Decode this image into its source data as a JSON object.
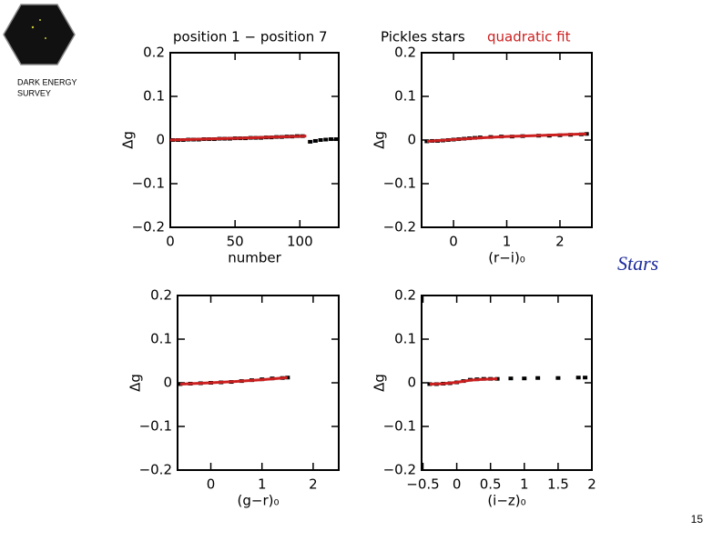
{
  "slide": {
    "logo_line1": "DARK ENERGY",
    "logo_line2": "SURVEY",
    "caption": "Stars",
    "page_number": "15"
  },
  "chart_data": [
    {
      "type": "scatter",
      "title": "position 1 − position 7",
      "xlabel": "number",
      "ylabel": "Δg",
      "xlim": [
        0,
        130
      ],
      "ylim": [
        -0.2,
        0.2
      ],
      "xticks": [
        0,
        50,
        100
      ],
      "yticks": [
        {
          "value": -0.2,
          "label": "−0.2"
        },
        {
          "value": -0.1,
          "label": "−0.1"
        },
        0,
        0.1,
        0.2
      ],
      "series": [
        {
          "color": "#000000",
          "x": [
            2,
            6,
            10,
            14,
            18,
            22,
            26,
            30,
            34,
            38,
            42,
            46,
            50,
            54,
            58,
            62,
            66,
            70,
            74,
            78,
            82,
            86,
            90,
            94,
            98,
            102,
            108,
            112,
            116,
            120,
            124,
            128
          ],
          "values": [
            0,
            0,
            0,
            0.001,
            0.001,
            0.001,
            0.002,
            0.002,
            0.002,
            0.003,
            0.003,
            0.003,
            0.004,
            0.004,
            0.004,
            0.005,
            0.005,
            0.005,
            0.006,
            0.006,
            0.007,
            0.007,
            0.008,
            0.008,
            0.009,
            0.009,
            -0.004,
            -0.002,
            0,
            0.001,
            0.002,
            0.002
          ]
        },
        {
          "color": "#cc1f1f",
          "x": [
            0,
            50,
            105
          ],
          "values": [
            0,
            0.004,
            0.009
          ]
        }
      ]
    },
    {
      "type": "scatter",
      "xlabel": "(r−i)₀",
      "ylabel": "Δg",
      "xlim": [
        -0.6,
        2.6
      ],
      "ylim": [
        -0.2,
        0.2
      ],
      "xticks": [
        0,
        1,
        2
      ],
      "yticks": [
        {
          "value": -0.2,
          "label": "−0.2"
        },
        {
          "value": -0.1,
          "label": "−0.1"
        },
        0,
        0.1,
        0.2
      ],
      "series": [
        {
          "name": "Pickles stars",
          "color": "#000000",
          "x": [
            -0.5,
            -0.4,
            -0.3,
            -0.2,
            -0.1,
            0,
            0.1,
            0.2,
            0.3,
            0.4,
            0.5,
            0.7,
            0.9,
            1.1,
            1.3,
            1.6,
            1.8,
            2.0,
            2.2,
            2.4,
            2.5
          ],
          "values": [
            -0.003,
            -0.002,
            -0.002,
            -0.001,
            0,
            0.001,
            0.002,
            0.003,
            0.004,
            0.005,
            0.006,
            0.007,
            0.008,
            0.008,
            0.009,
            0.01,
            0.01,
            0.011,
            0.012,
            0.013,
            0.014
          ]
        },
        {
          "name": "quadratic fit",
          "color": "#cc1f1f",
          "x": [
            -0.5,
            0,
            0.5,
            1,
            1.5,
            2,
            2.5
          ],
          "values": [
            -0.003,
            0.001,
            0.005,
            0.008,
            0.01,
            0.012,
            0.014
          ]
        }
      ]
    },
    {
      "type": "scatter",
      "xlabel": "(g−r)₀",
      "ylabel": "Δg",
      "xlim": [
        -0.65,
        2.5
      ],
      "ylim": [
        -0.2,
        0.2
      ],
      "xticks": [
        0,
        1,
        2
      ],
      "yticks": [
        {
          "value": -0.2,
          "label": "−0.2"
        },
        {
          "value": -0.1,
          "label": "−0.1"
        },
        0,
        0.1,
        0.2
      ],
      "series": [
        {
          "color": "#000000",
          "x": [
            -0.6,
            -0.4,
            -0.2,
            0,
            0.2,
            0.4,
            0.6,
            0.8,
            1.0,
            1.2,
            1.4,
            1.5
          ],
          "values": [
            -0.003,
            -0.002,
            -0.001,
            0,
            0.001,
            0.002,
            0.004,
            0.006,
            0.008,
            0.01,
            0.011,
            0.012
          ]
        },
        {
          "color": "#cc1f1f",
          "x": [
            -0.6,
            0,
            0.5,
            1,
            1.5
          ],
          "values": [
            -0.003,
            0,
            0.003,
            0.007,
            0.012
          ]
        }
      ]
    },
    {
      "type": "scatter",
      "xlabel": "(i−z)₀",
      "ylabel": "Δg",
      "xlim": [
        -0.52,
        2.0
      ],
      "ylim": [
        -0.2,
        0.2
      ],
      "xticks": [
        {
          "value": -0.5,
          "label": "−0.5"
        },
        0,
        0.5,
        1,
        1.5,
        2
      ],
      "yticks": [
        {
          "value": -0.2,
          "label": "−0.2"
        },
        {
          "value": -0.1,
          "label": "−0.1"
        },
        0,
        0.1,
        0.2
      ],
      "series": [
        {
          "color": "#000000",
          "x": [
            -0.4,
            -0.3,
            -0.2,
            -0.1,
            0,
            0.1,
            0.2,
            0.3,
            0.4,
            0.5,
            0.6,
            0.8,
            1.0,
            1.2,
            1.5,
            1.8,
            1.9
          ],
          "values": [
            -0.003,
            -0.003,
            -0.002,
            -0.001,
            0.001,
            0.004,
            0.007,
            0.008,
            0.009,
            0.009,
            0.009,
            0.01,
            0.01,
            0.011,
            0.011,
            0.012,
            0.012
          ]
        },
        {
          "color": "#cc1f1f",
          "x": [
            -0.4,
            -0.2,
            0,
            0.2,
            0.4,
            0.6
          ],
          "values": [
            -0.003,
            -0.002,
            0.001,
            0.006,
            0.008,
            0.009
          ]
        }
      ]
    }
  ]
}
